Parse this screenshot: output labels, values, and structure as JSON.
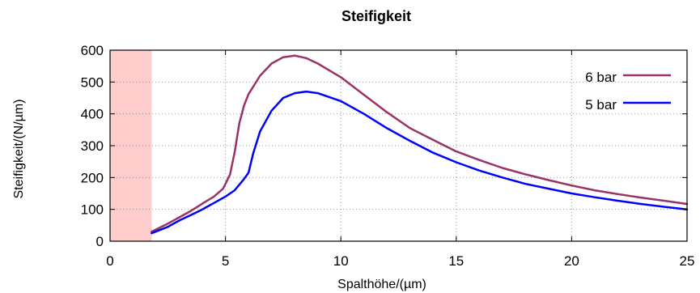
{
  "chart_data": {
    "type": "line",
    "title": "Steifigkeit",
    "xlabel": "Spalthöhe/(µm)",
    "ylabel": "Steifigkeit/(N/µm)",
    "xlim": [
      0,
      25
    ],
    "ylim": [
      0,
      600
    ],
    "xticks": [
      0,
      5,
      10,
      15,
      20,
      25
    ],
    "yticks": [
      0,
      100,
      200,
      300,
      400,
      500,
      600
    ],
    "grid": true,
    "legend_position": "top-right",
    "shaded_region": {
      "x_from": 0,
      "x_to": 1.8,
      "color": "#ffcccc"
    },
    "series": [
      {
        "name": "6 bar",
        "color": "#993366",
        "x": [
          1.8,
          2.5,
          3.0,
          3.5,
          4.0,
          4.5,
          4.9,
          5.2,
          5.4,
          5.6,
          5.8,
          6.0,
          6.5,
          7.0,
          7.5,
          8.0,
          8.5,
          9.0,
          10.0,
          11.0,
          12.0,
          13.0,
          14.0,
          15.0,
          16.0,
          17.0,
          18.0,
          19.0,
          20.0,
          21.0,
          22.0,
          23.0,
          24.0,
          25.0
        ],
        "y": [
          30,
          55,
          75,
          95,
          118,
          140,
          165,
          210,
          280,
          370,
          425,
          462,
          520,
          558,
          578,
          583,
          575,
          558,
          515,
          460,
          405,
          355,
          318,
          282,
          255,
          230,
          210,
          192,
          175,
          160,
          148,
          137,
          127,
          117
        ]
      },
      {
        "name": "5 bar",
        "color": "#0000ff",
        "x": [
          1.8,
          2.5,
          3.0,
          3.5,
          4.0,
          4.5,
          5.0,
          5.4,
          5.8,
          6.0,
          6.2,
          6.5,
          7.0,
          7.5,
          8.0,
          8.5,
          9.0,
          10.0,
          11.0,
          12.0,
          13.0,
          14.0,
          15.0,
          16.0,
          17.0,
          18.0,
          19.0,
          20.0,
          21.0,
          22.0,
          23.0,
          24.0,
          25.0
        ],
        "y": [
          25,
          45,
          65,
          82,
          100,
          120,
          140,
          160,
          195,
          215,
          275,
          345,
          410,
          450,
          465,
          470,
          465,
          440,
          400,
          355,
          315,
          278,
          248,
          222,
          200,
          180,
          165,
          150,
          138,
          127,
          117,
          108,
          100
        ]
      }
    ]
  }
}
